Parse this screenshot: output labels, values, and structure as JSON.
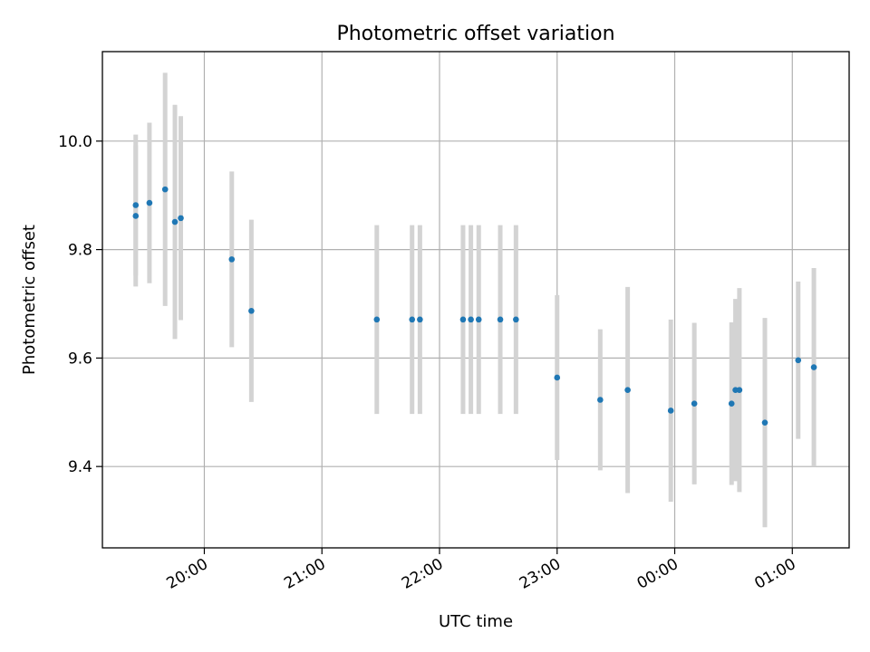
{
  "chart_data": {
    "type": "scatter",
    "title": "Photometric offset variation",
    "xlabel": "UTC time",
    "ylabel": "Photometric offset",
    "grid": true,
    "legend": "none",
    "x_axis": {
      "range": [
        "19:08",
        "01:29"
      ],
      "ticks": [
        "20:00",
        "21:00",
        "22:00",
        "23:00",
        "00:00",
        "01:00"
      ]
    },
    "y_axis": {
      "range": [
        9.25,
        10.165
      ],
      "ticks": [
        "9.4",
        "9.6",
        "9.8",
        "10.0"
      ]
    },
    "colors": {
      "point": "#1f77b4",
      "errorbar": "#d3d3d3",
      "grid": "#b0b0b0"
    },
    "series": [
      {
        "values": [
          {
            "x": "19:25",
            "y": 9.882,
            "err": 0.13
          },
          {
            "x": "19:25",
            "y": 9.862,
            "err": 0.13
          },
          {
            "x": "19:32",
            "y": 9.886,
            "err": 0.148
          },
          {
            "x": "19:40",
            "y": 9.911,
            "err": 0.215
          },
          {
            "x": "19:45",
            "y": 9.851,
            "err": 0.216
          },
          {
            "x": "19:48",
            "y": 9.858,
            "err": 0.188
          },
          {
            "x": "20:14",
            "y": 9.782,
            "err": 0.162
          },
          {
            "x": "20:24",
            "y": 9.687,
            "err": 0.168
          },
          {
            "x": "21:28",
            "y": 9.671,
            "err": 0.174
          },
          {
            "x": "21:46",
            "y": 9.671,
            "err": 0.174
          },
          {
            "x": "21:50",
            "y": 9.671,
            "err": 0.174
          },
          {
            "x": "22:12",
            "y": 9.671,
            "err": 0.174
          },
          {
            "x": "22:16",
            "y": 9.671,
            "err": 0.174
          },
          {
            "x": "22:20",
            "y": 9.671,
            "err": 0.174
          },
          {
            "x": "22:31",
            "y": 9.671,
            "err": 0.174
          },
          {
            "x": "22:39",
            "y": 9.671,
            "err": 0.174
          },
          {
            "x": "23:00",
            "y": 9.564,
            "err": 0.152
          },
          {
            "x": "23:22",
            "y": 9.523,
            "err": 0.13
          },
          {
            "x": "23:36",
            "y": 9.541,
            "err": 0.19
          },
          {
            "x": "23:58",
            "y": 9.503,
            "err": 0.168
          },
          {
            "x": "00:10",
            "y": 9.516,
            "err": 0.149
          },
          {
            "x": "00:29",
            "y": 9.516,
            "err": 0.15
          },
          {
            "x": "00:31",
            "y": 9.541,
            "err": 0.168
          },
          {
            "x": "00:33",
            "y": 9.541,
            "err": 0.188
          },
          {
            "x": "00:46",
            "y": 9.481,
            "err": 0.193
          },
          {
            "x": "01:03",
            "y": 9.596,
            "err": 0.145
          },
          {
            "x": "01:11",
            "y": 9.583,
            "err": 0.183
          }
        ]
      }
    ]
  }
}
